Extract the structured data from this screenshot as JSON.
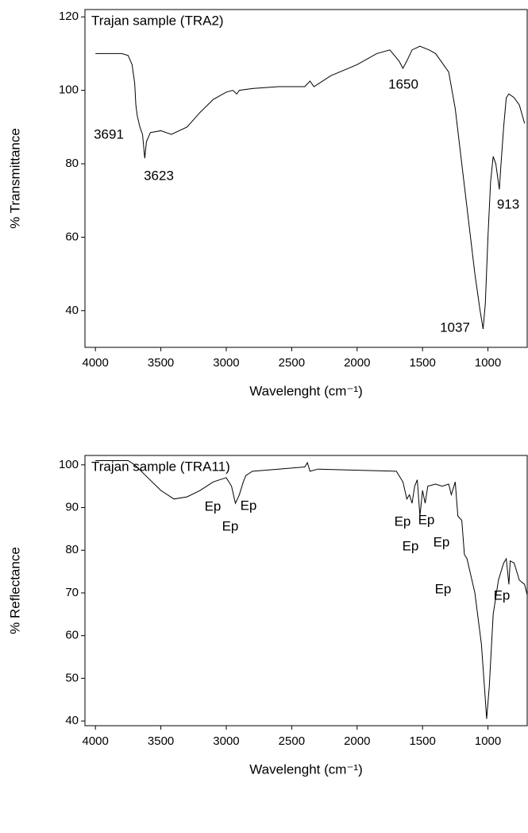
{
  "chart_data": [
    {
      "type": "line",
      "title": "Trajan sample (TRA2)",
      "ylabel": "% Transmittance",
      "xlabel": "Wavelenght (cm⁻¹)",
      "color": "#000000",
      "x": [
        4000,
        3800,
        3750,
        3720,
        3700,
        3691,
        3680,
        3660,
        3640,
        3623,
        3610,
        3580,
        3500,
        3420,
        3300,
        3200,
        3100,
        3000,
        2950,
        2920,
        2900,
        2800,
        2600,
        2400,
        2360,
        2330,
        2200,
        2000,
        1850,
        1750,
        1680,
        1650,
        1620,
        1580,
        1520,
        1450,
        1400,
        1300,
        1250,
        1200,
        1150,
        1100,
        1060,
        1037,
        1020,
        1000,
        980,
        960,
        940,
        913,
        900,
        880,
        860,
        840,
        800,
        760,
        720
      ],
      "values": [
        110,
        110,
        109.5,
        107,
        102,
        96,
        93,
        90,
        88,
        81.5,
        86,
        88.5,
        89,
        88,
        90,
        94,
        97.5,
        99.5,
        100,
        99,
        100,
        100.5,
        101,
        101,
        102.5,
        101,
        104,
        107,
        110,
        111,
        108,
        106,
        108,
        111,
        112,
        111,
        110,
        105,
        95,
        80,
        65,
        50,
        40,
        35,
        42,
        60,
        75,
        82,
        80,
        73,
        80,
        90,
        98,
        99,
        98,
        96,
        91
      ],
      "xlim": [
        4080,
        700
      ],
      "xticks": [
        4000,
        3500,
        3000,
        2500,
        2000,
        1500,
        1000
      ],
      "ylim": [
        30,
        122
      ],
      "yticks": [
        40,
        60,
        80,
        100,
        120
      ],
      "annotations": [
        "3691",
        "3623",
        "1650",
        "913",
        "1037"
      ]
    },
    {
      "type": "line",
      "title": "Trajan sample (TRA11)",
      "ylabel": "% Reflectance",
      "xlabel": "Wavelenght (cm⁻¹)",
      "color": "#000000",
      "x": [
        4000,
        3750,
        3700,
        3600,
        3500,
        3400,
        3300,
        3200,
        3100,
        3000,
        2960,
        2930,
        2900,
        2870,
        2850,
        2800,
        2600,
        2400,
        2380,
        2360,
        2300,
        1700,
        1650,
        1620,
        1600,
        1580,
        1560,
        1540,
        1520,
        1500,
        1480,
        1460,
        1400,
        1350,
        1300,
        1280,
        1250,
        1230,
        1200,
        1180,
        1160,
        1100,
        1050,
        1020,
        1010,
        990,
        960,
        920,
        880,
        860,
        840,
        830,
        800,
        760,
        720,
        700
      ],
      "values": [
        101,
        101,
        100,
        97,
        94,
        92,
        92.5,
        94,
        96,
        97,
        95,
        91,
        93,
        96,
        97.5,
        98.5,
        99,
        99.5,
        100.5,
        98.5,
        99,
        98.5,
        96,
        92,
        93,
        91,
        95,
        96.5,
        88,
        94,
        91,
        95,
        95.5,
        95,
        95.5,
        93,
        96,
        88,
        87,
        79,
        78,
        70,
        58,
        45,
        40.5,
        48,
        65,
        73,
        77,
        78,
        72,
        77.5,
        77,
        73,
        72,
        69.5
      ],
      "xlim": [
        4080,
        700
      ],
      "xticks": [
        4000,
        3500,
        3000,
        2500,
        2000,
        1500,
        1000
      ],
      "ylim": [
        38.9,
        102.2
      ],
      "yticks": [
        40,
        50,
        60,
        70,
        80,
        90,
        100
      ],
      "annotations": [
        "Ep",
        "Ep",
        "Ep",
        "Ep",
        "Ep",
        "Ep",
        "Ep",
        "Ep",
        "Ep"
      ]
    }
  ]
}
